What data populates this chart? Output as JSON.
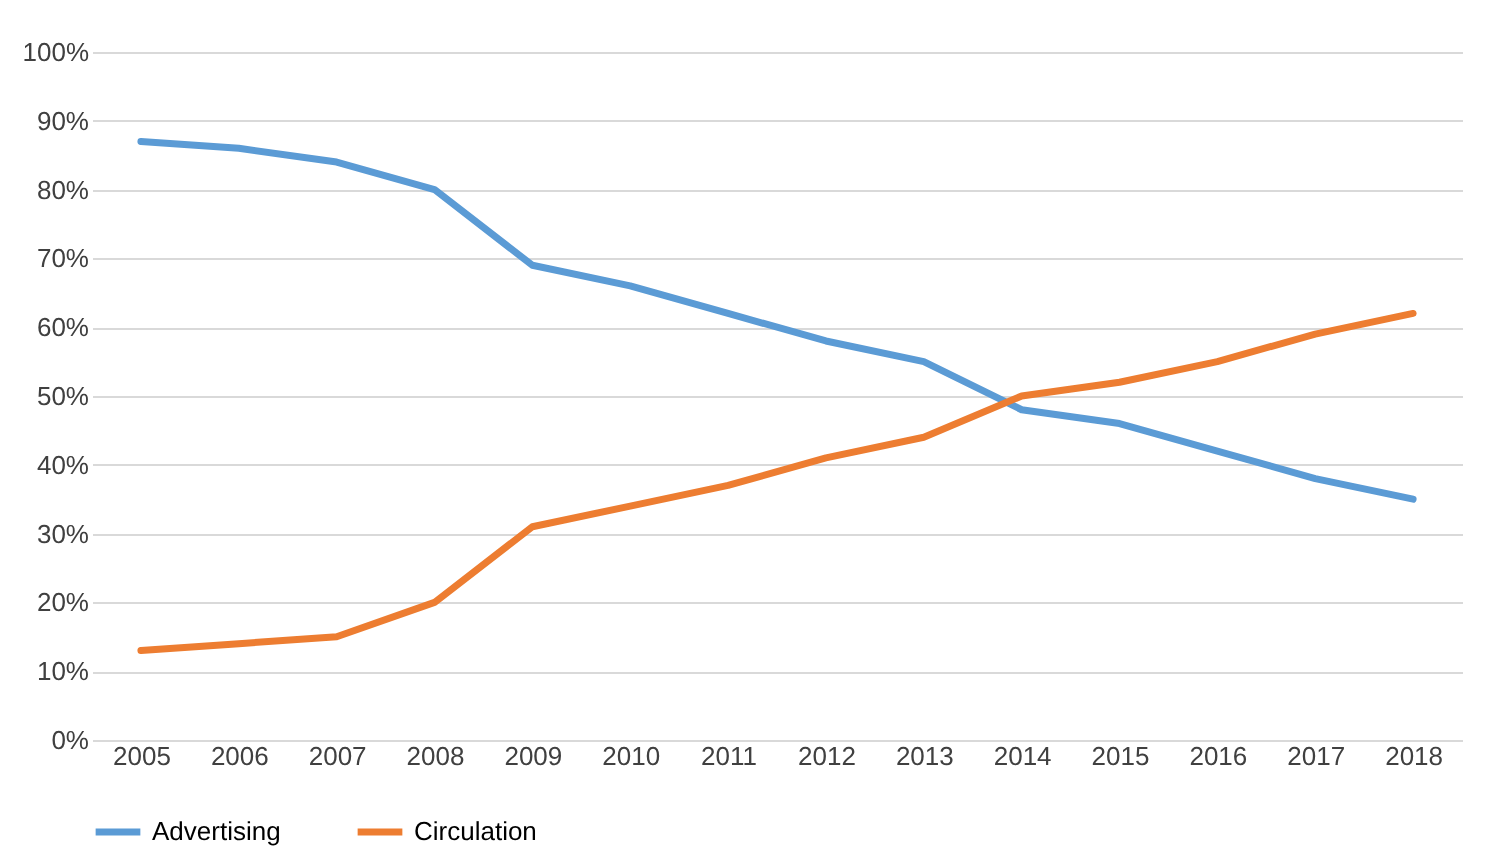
{
  "chart_data": {
    "type": "line",
    "categories": [
      "2005",
      "2006",
      "2007",
      "2008",
      "2009",
      "2010",
      "2011",
      "2012",
      "2013",
      "2014",
      "2015",
      "2016",
      "2017",
      "2018"
    ],
    "series": [
      {
        "name": "Advertising",
        "color": "#5b9bd5",
        "values": [
          87,
          86,
          84,
          80,
          69,
          66,
          62,
          58,
          55,
          48,
          46,
          42,
          38,
          35
        ]
      },
      {
        "name": "Circulation",
        "color": "#ed7d31",
        "values": [
          13,
          14,
          15,
          20,
          31,
          34,
          37,
          41,
          44,
          50,
          52,
          55,
          59,
          62
        ]
      }
    ],
    "ylim": [
      0,
      100
    ],
    "yticks": [
      {
        "value": 0,
        "label": "0%"
      },
      {
        "value": 10,
        "label": "10%"
      },
      {
        "value": 20,
        "label": "20%"
      },
      {
        "value": 30,
        "label": "30%"
      },
      {
        "value": 40,
        "label": "40%"
      },
      {
        "value": 50,
        "label": "50%"
      },
      {
        "value": 60,
        "label": "60%"
      },
      {
        "value": 70,
        "label": "70%"
      },
      {
        "value": 80,
        "label": "80%"
      },
      {
        "value": 90,
        "label": "90%"
      },
      {
        "value": 100,
        "label": "100%"
      }
    ],
    "grid": "y",
    "legend": "bottom",
    "marker": "none",
    "line_style": "solid"
  }
}
